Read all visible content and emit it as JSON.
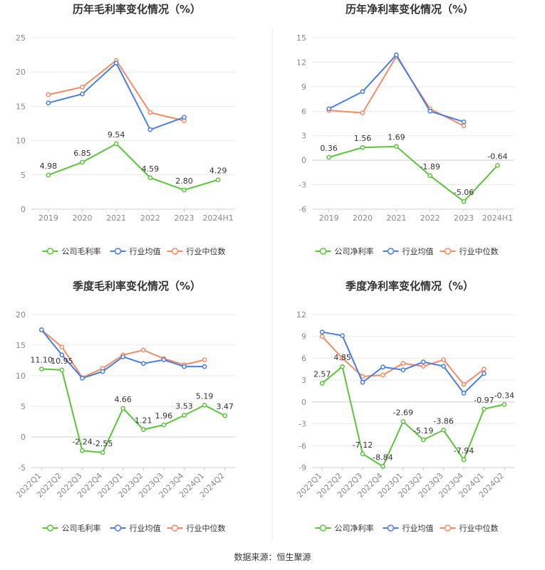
{
  "colors": {
    "company": "#5bc43a",
    "avg": "#4a7de2",
    "median": "#f58b65"
  },
  "source": "数据来源：恒生聚源",
  "chart_data": [
    {
      "type": "line",
      "title": "历年毛利率变化情况（%）",
      "categories": [
        "2019",
        "2020",
        "2021",
        "2022",
        "2023",
        "2024H1"
      ],
      "ylim": [
        0,
        25
      ],
      "yticks": [
        0,
        5,
        10,
        15,
        20,
        25
      ],
      "grid": true,
      "legend": "bottom",
      "series": [
        {
          "name": "公司毛利率",
          "values": [
            4.98,
            6.85,
            9.54,
            4.59,
            2.8,
            4.29
          ],
          "labels": [
            "4.98",
            "6.85",
            "9.54",
            "4.59",
            "2.80",
            "4.29"
          ]
        },
        {
          "name": "行业均值",
          "values": [
            15.5,
            16.8,
            21.3,
            11.6,
            13.4,
            null
          ]
        },
        {
          "name": "行业中位数",
          "values": [
            16.7,
            17.8,
            21.7,
            14.1,
            12.9,
            null
          ]
        }
      ]
    },
    {
      "type": "line",
      "title": "历年净利率变化情况（%）",
      "categories": [
        "2019",
        "2020",
        "2021",
        "2022",
        "2023",
        "2024H1"
      ],
      "ylim": [
        -6,
        15
      ],
      "yticks": [
        -6,
        -3,
        0,
        3,
        6,
        9,
        12,
        15
      ],
      "grid": true,
      "legend": "bottom",
      "series": [
        {
          "name": "公司净利率",
          "values": [
            0.36,
            1.56,
            1.69,
            -1.89,
            -5.06,
            -0.64
          ],
          "labels": [
            "0.36",
            "1.56",
            "1.69",
            "-1.89",
            "-5.06",
            "-0.64"
          ]
        },
        {
          "name": "行业均值",
          "values": [
            6.3,
            8.4,
            12.9,
            6.0,
            4.7,
            null
          ]
        },
        {
          "name": "行业中位数",
          "values": [
            6.1,
            5.8,
            12.7,
            6.3,
            4.2,
            null
          ]
        }
      ]
    },
    {
      "type": "line",
      "title": "季度毛利率变化情况（%）",
      "categories": [
        "2022Q1",
        "2022Q2",
        "2022Q3",
        "2022Q4",
        "2023Q1",
        "2023Q2",
        "2023Q3",
        "2023Q4",
        "2024Q1",
        "2024Q2"
      ],
      "ylim": [
        -5,
        20
      ],
      "yticks": [
        -5,
        0,
        5,
        10,
        15,
        20
      ],
      "grid": true,
      "legend": "bottom",
      "series": [
        {
          "name": "公司毛利率",
          "values": [
            11.1,
            10.95,
            -2.24,
            -2.55,
            4.66,
            1.21,
            1.96,
            3.53,
            5.19,
            3.47
          ],
          "labels": [
            "11.10",
            "10.95",
            "-2.24",
            "-2.55",
            "4.66",
            "1.21",
            "1.96",
            "3.53",
            "5.19",
            "3.47"
          ]
        },
        {
          "name": "行业均值",
          "values": [
            17.5,
            13.4,
            9.6,
            10.7,
            13.1,
            12.0,
            12.6,
            11.5,
            11.5,
            null
          ]
        },
        {
          "name": "行业中位数",
          "values": [
            17.5,
            14.7,
            9.7,
            11.2,
            13.4,
            14.2,
            12.8,
            11.8,
            12.6,
            null
          ]
        }
      ]
    },
    {
      "type": "line",
      "title": "季度净利率变化情况（%）",
      "categories": [
        "2022Q1",
        "2022Q2",
        "2022Q3",
        "2022Q4",
        "2023Q1",
        "2023Q2",
        "2023Q3",
        "2023Q4",
        "2024Q1",
        "2024Q2"
      ],
      "ylim": [
        -9,
        12
      ],
      "yticks": [
        -9,
        -6,
        -3,
        0,
        3,
        6,
        9,
        12
      ],
      "grid": true,
      "legend": "bottom",
      "series": [
        {
          "name": "公司净利率",
          "values": [
            2.57,
            4.85,
            -7.12,
            -8.84,
            -2.69,
            -5.19,
            -3.86,
            -7.94,
            -0.97,
            -0.34
          ],
          "labels": [
            "2.57",
            "4.85",
            "-7.12",
            "-8.84",
            "-2.69",
            "-5.19",
            "-3.86",
            "-7.94",
            "-0.97",
            "-0.34"
          ]
        },
        {
          "name": "行业均值",
          "values": [
            9.6,
            9.1,
            2.7,
            4.8,
            4.4,
            5.5,
            4.9,
            1.2,
            3.9,
            null
          ]
        },
        {
          "name": "行业中位数",
          "values": [
            9.0,
            6.0,
            3.5,
            3.7,
            5.3,
            4.9,
            5.8,
            2.4,
            4.5,
            null
          ]
        }
      ]
    }
  ]
}
